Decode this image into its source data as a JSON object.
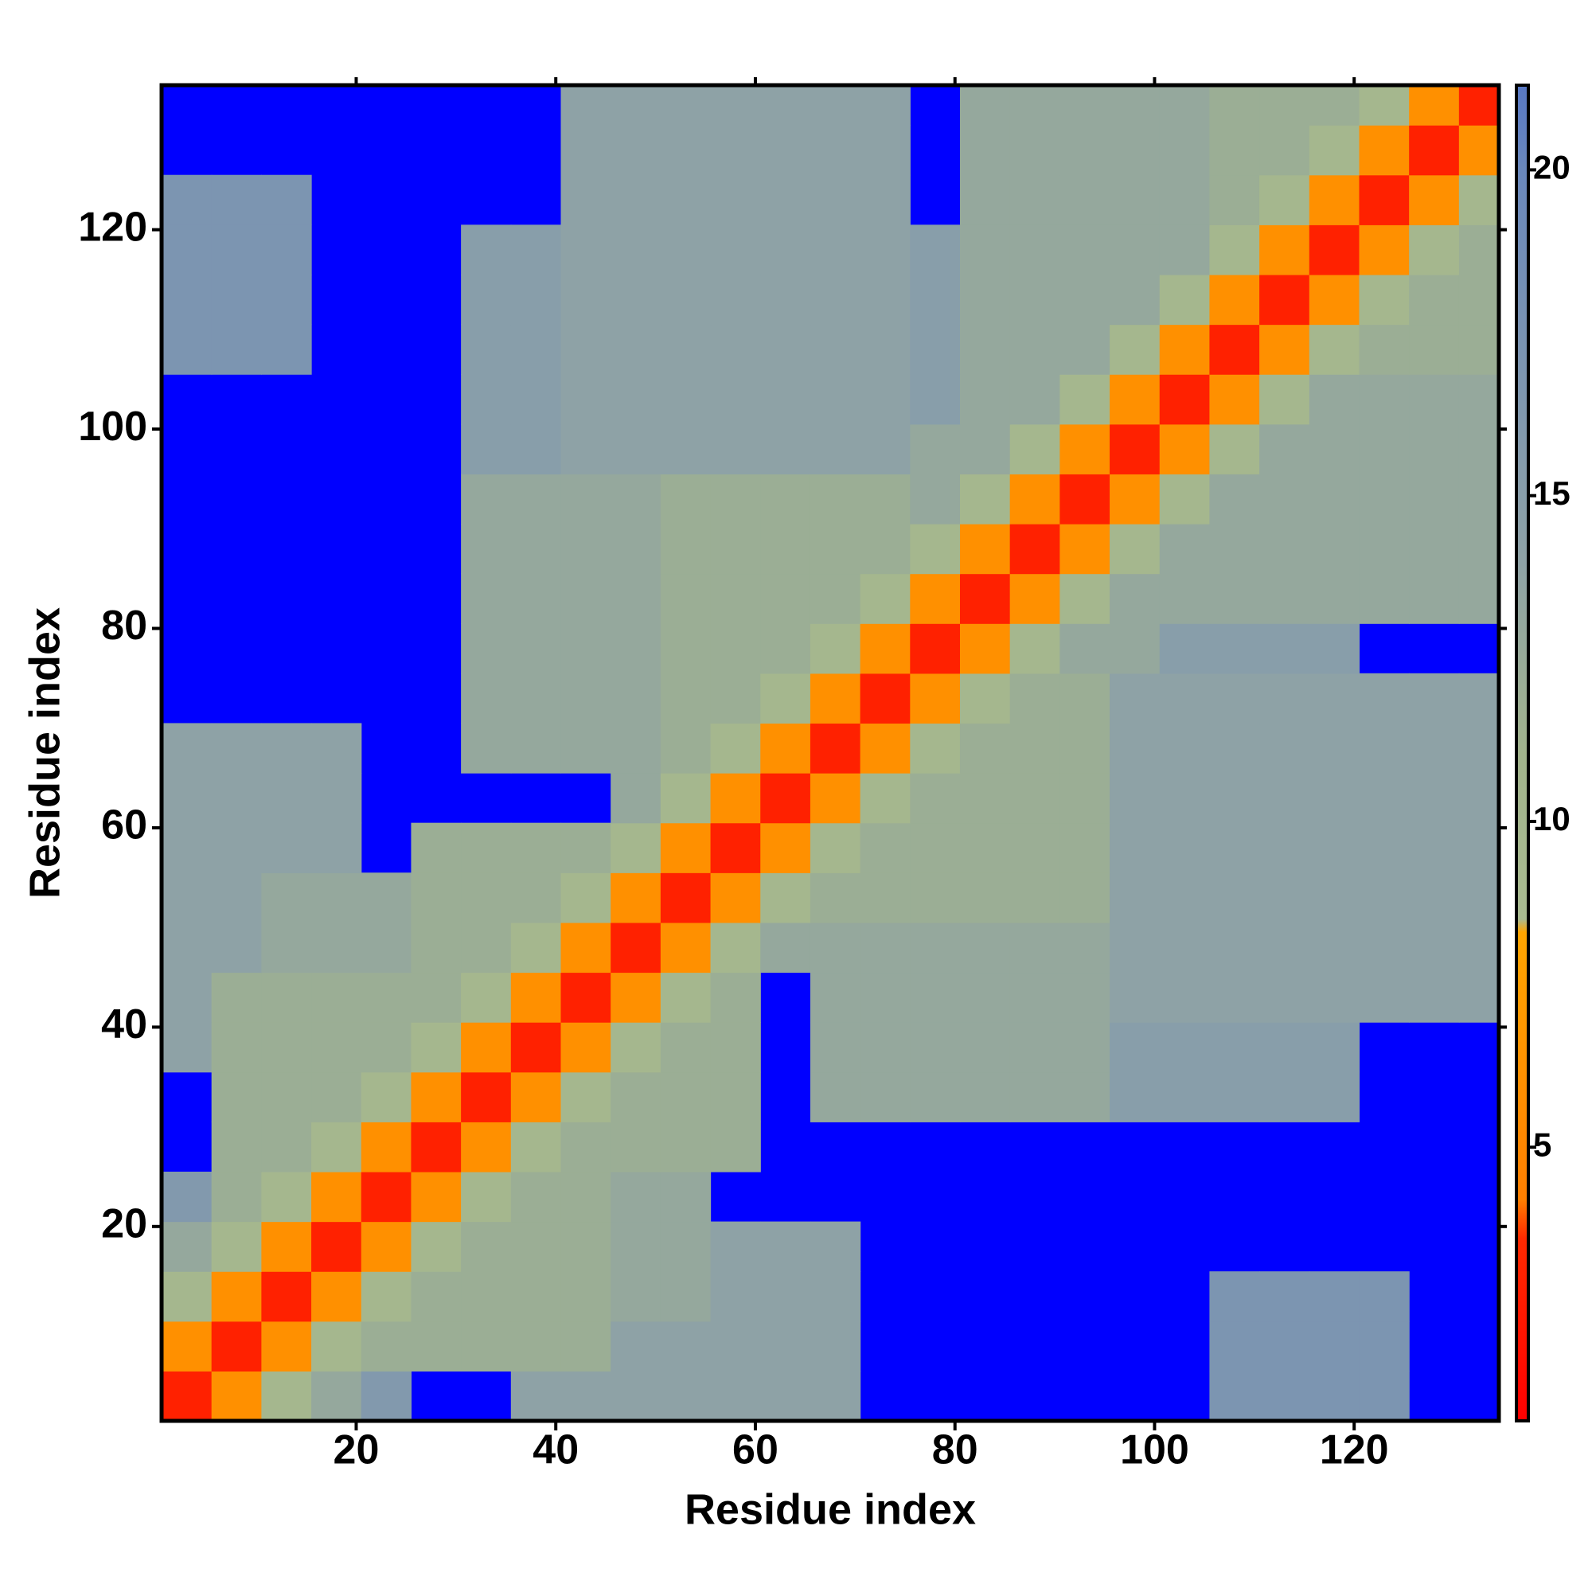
{
  "chart_data": {
    "type": "heatmap",
    "x_label": "Residue index",
    "y_label": "Residue index",
    "x": [
      3,
      8,
      13,
      18,
      23,
      28,
      33,
      38,
      43,
      48,
      53,
      58,
      63,
      68,
      73,
      78,
      83,
      88,
      93,
      98,
      103,
      108,
      113,
      118,
      123,
      128,
      133
    ],
    "y": [
      3,
      8,
      13,
      18,
      23,
      28,
      33,
      38,
      43,
      48,
      53,
      58,
      63,
      68,
      73,
      78,
      83,
      88,
      93,
      98,
      103,
      108,
      113,
      118,
      123,
      128,
      133
    ],
    "cell_size": 5,
    "z": [
      [
        3,
        6,
        10,
        13,
        16,
        null,
        null,
        14,
        14,
        14,
        14,
        14,
        14,
        14,
        null,
        null,
        null,
        null,
        null,
        null,
        null,
        17,
        17,
        17,
        17,
        null,
        null
      ],
      [
        6,
        3,
        6,
        10,
        12,
        12,
        12,
        12,
        12,
        14,
        14,
        14,
        14,
        14,
        null,
        null,
        null,
        null,
        null,
        null,
        null,
        17,
        17,
        17,
        17,
        null,
        null
      ],
      [
        10,
        6,
        3,
        6,
        10,
        12,
        12,
        12,
        12,
        13,
        13,
        14,
        14,
        14,
        null,
        null,
        null,
        null,
        null,
        null,
        null,
        17,
        17,
        17,
        17,
        null,
        null
      ],
      [
        13,
        10,
        6,
        3,
        6,
        10,
        12,
        12,
        12,
        13,
        13,
        14,
        14,
        14,
        null,
        null,
        null,
        null,
        null,
        null,
        null,
        null,
        null,
        null,
        null,
        null,
        null
      ],
      [
        16,
        12,
        10,
        6,
        3,
        6,
        10,
        12,
        12,
        13,
        13,
        null,
        null,
        null,
        null,
        null,
        null,
        null,
        null,
        null,
        null,
        null,
        null,
        null,
        null,
        null,
        null
      ],
      [
        null,
        12,
        12,
        10,
        6,
        3,
        6,
        10,
        12,
        12,
        12,
        12,
        null,
        null,
        null,
        null,
        null,
        null,
        null,
        null,
        null,
        null,
        null,
        null,
        null,
        null,
        null
      ],
      [
        null,
        12,
        12,
        12,
        10,
        6,
        3,
        6,
        10,
        12,
        12,
        12,
        null,
        13,
        13,
        13,
        13,
        13,
        13,
        15,
        15,
        15,
        15,
        15,
        null,
        null,
        null
      ],
      [
        14,
        12,
        12,
        12,
        12,
        10,
        6,
        3,
        6,
        10,
        12,
        12,
        null,
        13,
        13,
        13,
        13,
        13,
        13,
        15,
        15,
        15,
        15,
        15,
        null,
        null,
        null
      ],
      [
        14,
        12,
        12,
        12,
        12,
        12,
        10,
        6,
        3,
        6,
        10,
        12,
        null,
        13,
        13,
        13,
        13,
        13,
        13,
        14,
        14,
        14,
        14,
        14,
        14,
        14,
        14
      ],
      [
        14,
        14,
        13,
        13,
        13,
        12,
        12,
        10,
        6,
        3,
        6,
        10,
        13,
        13,
        13,
        13,
        13,
        13,
        13,
        14,
        14,
        14,
        14,
        14,
        14,
        14,
        14
      ],
      [
        14,
        14,
        13,
        13,
        13,
        12,
        12,
        12,
        10,
        6,
        3,
        6,
        10,
        12,
        12,
        12,
        12,
        12,
        12,
        14,
        14,
        14,
        14,
        14,
        14,
        14,
        14
      ],
      [
        14,
        14,
        14,
        14,
        null,
        12,
        12,
        12,
        12,
        10,
        6,
        3,
        6,
        10,
        12,
        12,
        12,
        12,
        12,
        14,
        14,
        14,
        14,
        14,
        14,
        14,
        14
      ],
      [
        14,
        14,
        14,
        14,
        null,
        null,
        null,
        null,
        null,
        13,
        10,
        6,
        3,
        6,
        10,
        12,
        12,
        12,
        12,
        14,
        14,
        14,
        14,
        14,
        14,
        14,
        14
      ],
      [
        14,
        14,
        14,
        14,
        null,
        null,
        13,
        13,
        13,
        13,
        12,
        10,
        6,
        3,
        6,
        10,
        12,
        12,
        12,
        14,
        14,
        14,
        14,
        14,
        14,
        14,
        14
      ],
      [
        null,
        null,
        null,
        null,
        null,
        null,
        13,
        13,
        13,
        13,
        12,
        12,
        10,
        6,
        3,
        6,
        10,
        12,
        12,
        14,
        14,
        14,
        14,
        14,
        14,
        14,
        14
      ],
      [
        null,
        null,
        null,
        null,
        null,
        null,
        13,
        13,
        13,
        13,
        12,
        12,
        12,
        10,
        6,
        3,
        6,
        10,
        13,
        13,
        15,
        15,
        15,
        15,
        null,
        null,
        null
      ],
      [
        null,
        null,
        null,
        null,
        null,
        null,
        13,
        13,
        13,
        13,
        12,
        12,
        12,
        12,
        10,
        6,
        3,
        6,
        10,
        13,
        13,
        13,
        13,
        13,
        13,
        13,
        13
      ],
      [
        null,
        null,
        null,
        null,
        null,
        null,
        13,
        13,
        13,
        13,
        12,
        12,
        12,
        12,
        12,
        10,
        6,
        3,
        6,
        10,
        13,
        13,
        13,
        13,
        13,
        13,
        13
      ],
      [
        null,
        null,
        null,
        null,
        null,
        null,
        13,
        13,
        13,
        13,
        12,
        12,
        12,
        12,
        12,
        13,
        10,
        6,
        3,
        6,
        10,
        13,
        13,
        13,
        13,
        13,
        13
      ],
      [
        null,
        null,
        null,
        null,
        null,
        null,
        15,
        15,
        14,
        14,
        14,
        14,
        14,
        14,
        14,
        13,
        13,
        10,
        6,
        3,
        6,
        10,
        13,
        13,
        13,
        13,
        13
      ],
      [
        null,
        null,
        null,
        null,
        null,
        null,
        15,
        15,
        14,
        14,
        14,
        14,
        14,
        14,
        14,
        15,
        13,
        13,
        10,
        6,
        3,
        6,
        10,
        13,
        13,
        13,
        13
      ],
      [
        17,
        17,
        17,
        null,
        null,
        null,
        15,
        15,
        14,
        14,
        14,
        14,
        14,
        14,
        14,
        15,
        13,
        13,
        13,
        10,
        6,
        3,
        6,
        10,
        12,
        12,
        12
      ],
      [
        17,
        17,
        17,
        null,
        null,
        null,
        15,
        15,
        14,
        14,
        14,
        14,
        14,
        14,
        14,
        15,
        13,
        13,
        13,
        13,
        10,
        6,
        3,
        6,
        10,
        12,
        12
      ],
      [
        17,
        17,
        17,
        null,
        null,
        null,
        15,
        15,
        14,
        14,
        14,
        14,
        14,
        14,
        14,
        15,
        13,
        13,
        13,
        13,
        13,
        10,
        6,
        3,
        6,
        10,
        12
      ],
      [
        17,
        17,
        17,
        null,
        null,
        null,
        null,
        null,
        14,
        14,
        14,
        14,
        14,
        14,
        14,
        null,
        13,
        13,
        13,
        13,
        13,
        12,
        10,
        6,
        3,
        6,
        10
      ],
      [
        null,
        null,
        null,
        null,
        null,
        null,
        null,
        null,
        14,
        14,
        14,
        14,
        14,
        14,
        14,
        null,
        13,
        13,
        13,
        13,
        13,
        12,
        12,
        10,
        6,
        3,
        6
      ],
      [
        null,
        null,
        null,
        null,
        null,
        null,
        null,
        null,
        14,
        14,
        14,
        14,
        14,
        14,
        14,
        null,
        13,
        13,
        13,
        13,
        13,
        12,
        12,
        12,
        10,
        6,
        3
      ]
    ],
    "xlim": [
      0.5,
      134.5
    ],
    "ylim": [
      0.5,
      134.5
    ],
    "xticks": [
      20,
      40,
      60,
      80,
      100,
      120
    ],
    "yticks": [
      20,
      40,
      60,
      80,
      100,
      120
    ],
    "zlim": [
      0.8,
      21.3
    ],
    "zticks": [
      5,
      10,
      15,
      20
    ],
    "missing_color": "#0000ff",
    "colorscale": [
      [
        0.8,
        "#ff0000"
      ],
      [
        3.6,
        "#ff2a00"
      ],
      [
        4.2,
        "#ff7f00"
      ],
      [
        8.3,
        "#ffa500"
      ],
      [
        8.5,
        "#a9bb90"
      ],
      [
        11,
        "#a2b48c"
      ],
      [
        14,
        "#8ea2a6"
      ],
      [
        20,
        "#6a88bc"
      ],
      [
        21.3,
        "#5878c4"
      ]
    ]
  }
}
